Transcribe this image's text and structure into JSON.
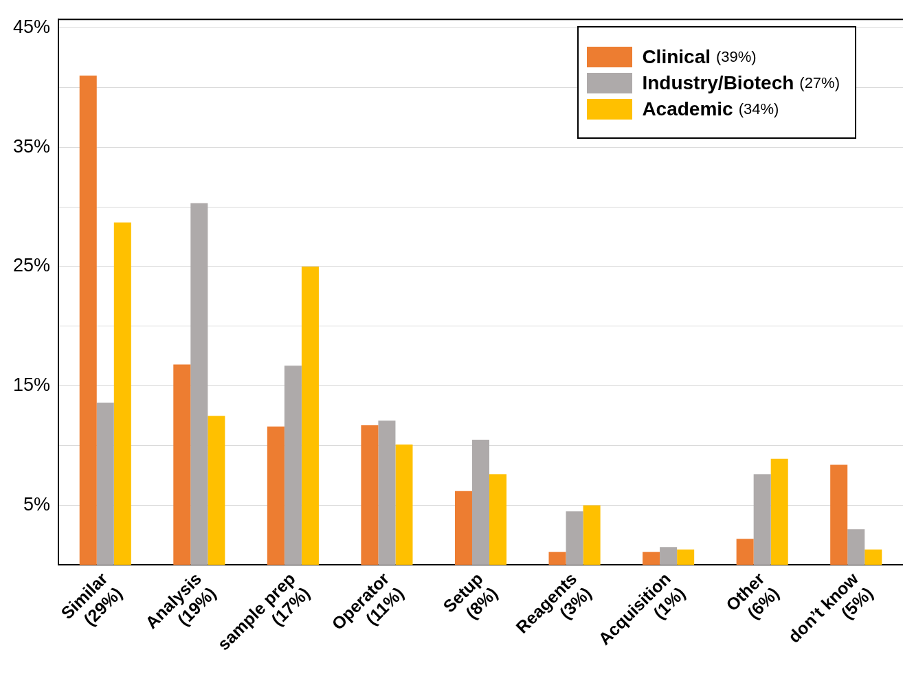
{
  "chart_data": {
    "type": "bar",
    "categories": [
      "Similar (29%)",
      "Analysis (19%)",
      "sample prep (17%)",
      "Operator (11%)",
      "Setup (8%)",
      "Reagents (3%)",
      "Acquisition (1%)",
      "Other (6%)",
      "don’t know (5%)"
    ],
    "series": [
      {
        "name": "Clinical (39%)",
        "color": "#ed7d31",
        "values": [
          41.0,
          16.8,
          11.6,
          11.7,
          6.2,
          1.1,
          1.1,
          2.2,
          8.4
        ]
      },
      {
        "name": "Industry/Biotech (27%)",
        "color": "#aeaaaa",
        "values": [
          13.6,
          30.3,
          16.7,
          12.1,
          10.5,
          4.5,
          1.5,
          7.6,
          3.0
        ]
      },
      {
        "name": "Academic (34%)",
        "color": "#ffc000",
        "values": [
          28.7,
          12.5,
          25.0,
          10.1,
          7.6,
          5.0,
          1.3,
          8.9,
          1.3
        ]
      }
    ],
    "ylim": [
      0,
      45.7
    ],
    "yticks": [
      {
        "value": 5,
        "label": "5%"
      },
      {
        "value": 10,
        "label": null
      },
      {
        "value": 15,
        "label": "15%"
      },
      {
        "value": 20,
        "label": null
      },
      {
        "value": 25,
        "label": "25%"
      },
      {
        "value": 30,
        "label": null
      },
      {
        "value": 35,
        "label": "35%"
      },
      {
        "value": 40,
        "label": null
      },
      {
        "value": 45,
        "label": "45%"
      }
    ],
    "grid": "y",
    "legend": "top right"
  }
}
